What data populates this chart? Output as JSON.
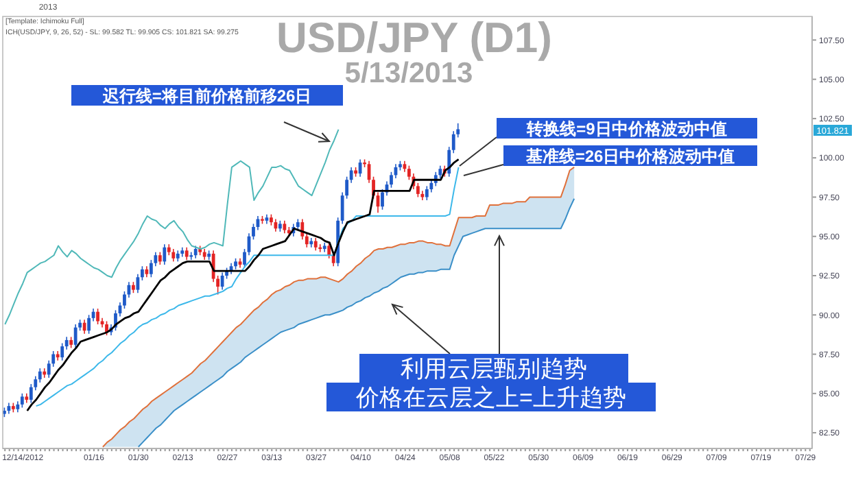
{
  "chart_data": {
    "type": "candlestick",
    "title": "USD/JPY (D1)",
    "subtitle": "5/13/2013",
    "categories": [
      null,
      null,
      null,
      null,
      "12/14/2012",
      null,
      null,
      null,
      null,
      null,
      null,
      null,
      null,
      null,
      null,
      null,
      null,
      null,
      null,
      null,
      "01/16",
      null,
      null,
      null,
      null,
      null,
      null,
      null,
      null,
      null,
      "01/30",
      null,
      null,
      null,
      null,
      null,
      null,
      null,
      null,
      null,
      "02/13",
      null,
      null,
      null,
      null,
      null,
      null,
      null,
      null,
      null,
      "02/27",
      null,
      null,
      null,
      null,
      null,
      null,
      null,
      null,
      null,
      "03/13",
      null,
      null,
      null,
      null,
      null,
      null,
      null,
      null,
      null,
      "03/27",
      null,
      null,
      null,
      null,
      null,
      null,
      null,
      null,
      null,
      "04/10",
      null,
      null,
      null,
      null,
      null,
      null,
      null,
      null,
      null,
      "04/24",
      null,
      null,
      null,
      null,
      null,
      null,
      null,
      null,
      null,
      "05/08",
      null,
      null,
      null,
      null,
      null,
      null,
      null,
      null,
      null,
      "05/22",
      null,
      null,
      null,
      null,
      null,
      null,
      null,
      null,
      null,
      "05/30",
      null,
      null,
      null,
      null,
      null,
      null,
      null,
      null,
      null,
      "06/09",
      null,
      null,
      null,
      null,
      null,
      null,
      null,
      null,
      null,
      "06/19",
      null,
      null,
      null,
      null,
      null,
      null,
      null,
      null,
      null,
      "06/29",
      null,
      null,
      null,
      null,
      null,
      null,
      null,
      null,
      null,
      "07/09",
      null,
      null,
      null,
      null,
      null,
      null,
      null,
      null,
      null,
      "07/19",
      null,
      null,
      null,
      null,
      null,
      null,
      null,
      null,
      null,
      "07/29",
      null
    ],
    "ylim": [
      81.5,
      109
    ],
    "yticks": [
      {
        "value": 82.5,
        "label": "82.50"
      },
      {
        "value": 85,
        "label": "85.00"
      },
      {
        "value": 87.5,
        "label": "87.50"
      },
      {
        "value": 90,
        "label": "90.00"
      },
      {
        "value": 92.5,
        "label": "92.50"
      },
      {
        "value": 95,
        "label": "95.00"
      },
      {
        "value": 97.5,
        "label": "97.50"
      },
      {
        "value": 100,
        "label": "100.00"
      },
      {
        "value": 102.5,
        "label": "102.50"
      },
      {
        "value": 105,
        "label": "105.00"
      },
      {
        "value": 107.5,
        "label": "107.50"
      }
    ],
    "grid": false,
    "series": [
      {
        "type": "line",
        "color": "#e0703a",
        "values": [
          null,
          null,
          null,
          null,
          null,
          null,
          null,
          null,
          null,
          null,
          null,
          null,
          null,
          null,
          null,
          null,
          null,
          null,
          null,
          null,
          null,
          null,
          81.6,
          81.9,
          82.1,
          82.4,
          82.7,
          82.9,
          83.2,
          83.4,
          83.7,
          84.0,
          84.2,
          84.5,
          84.7,
          84.9,
          85.1,
          85.3,
          85.5,
          85.7,
          85.9,
          86.1,
          86.3,
          86.6,
          86.9,
          87.1,
          87.4,
          87.7,
          88.0,
          88.3,
          88.6,
          88.9,
          89.2,
          89.4,
          89.7,
          90.0,
          90.3,
          90.5,
          90.8,
          91.0,
          91.3,
          91.5,
          91.6,
          91.8,
          91.9,
          92.1,
          92.2,
          92.2,
          92.3,
          92.3,
          92.3,
          92.4,
          92.4,
          92.3,
          92.2,
          92.1,
          92.3,
          92.6,
          92.8,
          93.1,
          93.3,
          93.6,
          93.8,
          94.1,
          94.2,
          94.2,
          94.3,
          94.3,
          94.4,
          94.5,
          94.5,
          94.6,
          94.6,
          94.7,
          94.7,
          94.6,
          94.6,
          94.5,
          94.5,
          94.4,
          94.4,
          95.3,
          96.2,
          96.2,
          96.2,
          96.2,
          96.3,
          96.3,
          96.3,
          97.0,
          97.0,
          97.0,
          97.1,
          97.1,
          97.1,
          97.2,
          97.2,
          97.2,
          97.5,
          97.5,
          97.5,
          97.5,
          97.5,
          97.5,
          97.5,
          97.5,
          98.3,
          99.2,
          99.4,
          null,
          null,
          null,
          null,
          null,
          null,
          null,
          null,
          null,
          null,
          null,
          null,
          null,
          null,
          null,
          null,
          null,
          null,
          null,
          null,
          null,
          null,
          null,
          null,
          null,
          null,
          null,
          null,
          null,
          null,
          null,
          null,
          null,
          null,
          null,
          null,
          null,
          null,
          null,
          null,
          null,
          null,
          null,
          null,
          null,
          null,
          null,
          null,
          null,
          null,
          null,
          null,
          null
        ]
      },
      {
        "type": "line",
        "color": "#3a8fc8",
        "values": [
          null,
          null,
          null,
          null,
          null,
          null,
          null,
          null,
          null,
          null,
          null,
          null,
          null,
          null,
          null,
          null,
          null,
          null,
          null,
          null,
          null,
          null,
          null,
          null,
          null,
          null,
          null,
          null,
          null,
          null,
          81.6,
          81.9,
          82.2,
          82.5,
          82.8,
          83.0,
          83.3,
          83.6,
          83.9,
          84.1,
          84.3,
          84.5,
          84.7,
          84.9,
          85.1,
          85.3,
          85.5,
          85.7,
          85.9,
          86.1,
          86.4,
          86.6,
          86.8,
          87.0,
          87.3,
          87.5,
          87.7,
          87.9,
          88.1,
          88.3,
          88.5,
          88.7,
          88.9,
          89.0,
          89.1,
          89.2,
          89.4,
          89.5,
          89.6,
          89.7,
          89.8,
          89.9,
          90.0,
          90.0,
          90.1,
          90.2,
          90.3,
          90.5,
          90.6,
          90.8,
          90.9,
          91.1,
          91.2,
          91.4,
          91.5,
          91.7,
          91.8,
          92.0,
          92.2,
          92.4,
          92.5,
          92.6,
          92.6,
          92.7,
          92.7,
          92.8,
          92.8,
          92.8,
          92.9,
          92.9,
          92.9,
          93.8,
          94.4,
          95.0,
          95.1,
          95.2,
          95.3,
          95.4,
          95.5,
          95.5,
          95.5,
          95.5,
          95.5,
          95.5,
          95.5,
          95.5,
          95.5,
          95.5,
          95.5,
          95.5,
          95.5,
          95.5,
          95.5,
          95.5,
          95.5,
          95.5,
          96.1,
          96.8,
          97.4,
          null,
          null,
          null,
          null,
          null,
          null,
          null,
          null,
          null,
          null,
          null,
          null,
          null,
          null,
          null,
          null,
          null,
          null,
          null,
          null,
          null,
          null,
          null,
          null,
          null,
          null,
          null,
          null,
          null,
          null,
          null,
          null,
          null,
          null,
          null,
          null,
          null,
          null,
          null,
          null,
          null,
          null,
          null,
          null,
          null,
          null,
          null,
          null,
          null,
          null,
          null,
          null,
          null
        ],
        "lower": [
          null,
          null,
          null,
          null,
          null,
          null,
          null,
          null,
          null,
          null,
          null,
          null,
          null,
          null,
          null,
          null,
          null,
          null,
          null,
          null,
          null,
          null,
          81.6,
          81.6,
          81.6,
          81.6,
          81.6,
          81.6,
          81.6,
          81.6,
          81.6,
          81.9,
          82.2,
          82.5,
          82.8,
          83.0,
          83.3,
          83.6,
          83.9,
          84.1,
          84.3,
          84.5,
          84.7,
          84.9,
          85.1,
          85.3,
          85.5,
          85.7,
          85.9,
          86.1,
          86.4,
          86.6,
          86.8,
          87.0,
          87.3,
          87.5,
          87.7,
          87.9,
          88.1,
          88.3,
          88.5,
          88.7,
          88.9,
          89.0,
          89.1,
          89.2,
          89.4,
          89.5,
          89.6,
          89.7,
          89.8,
          89.9,
          90.0,
          90.0,
          90.1,
          90.2,
          90.3,
          90.5,
          90.6,
          90.8,
          90.9,
          91.1,
          91.2,
          91.4,
          91.5,
          91.7,
          91.8,
          92.0,
          92.2,
          92.4,
          92.5,
          92.6,
          92.6,
          92.7,
          92.7,
          92.8,
          92.8,
          92.8,
          92.9,
          92.9,
          92.9,
          93.8,
          94.4,
          95.0,
          95.1,
          95.2,
          95.3,
          95.4,
          95.5,
          95.5,
          95.5,
          95.5,
          95.5,
          95.5,
          95.5,
          95.5,
          95.5,
          95.5,
          95.5,
          95.5,
          95.5,
          95.5,
          95.5,
          95.5,
          95.5,
          95.5,
          96.1,
          96.8,
          97.4,
          null,
          null,
          null,
          null,
          null,
          null,
          null,
          null,
          null,
          null,
          null,
          null,
          null,
          null,
          null,
          null,
          null,
          null,
          null,
          null,
          null,
          null,
          null,
          null,
          null,
          null,
          null,
          null,
          null,
          null,
          null,
          null,
          null,
          null,
          null,
          null,
          null,
          null,
          null,
          null,
          null,
          null,
          null,
          null,
          null,
          null,
          null,
          null,
          null,
          null,
          null,
          null,
          null
        ],
        "upper": [
          null,
          null,
          null,
          null,
          null,
          null,
          null,
          null,
          null,
          null,
          null,
          null,
          null,
          null,
          null,
          null,
          null,
          null,
          null,
          null,
          null,
          null,
          81.6,
          81.9,
          82.1,
          82.4,
          82.7,
          82.9,
          83.2,
          83.4,
          83.7,
          84.0,
          84.2,
          84.5,
          84.7,
          84.9,
          85.1,
          85.3,
          85.5,
          85.7,
          85.9,
          86.1,
          86.3,
          86.6,
          86.9,
          87.1,
          87.4,
          87.7,
          88.0,
          88.3,
          88.6,
          88.9,
          89.2,
          89.4,
          89.7,
          90.0,
          90.3,
          90.5,
          90.8,
          91.0,
          91.3,
          91.5,
          91.6,
          91.8,
          91.9,
          92.1,
          92.2,
          92.2,
          92.3,
          92.3,
          92.3,
          92.4,
          92.4,
          92.3,
          92.2,
          92.1,
          92.3,
          92.6,
          92.8,
          93.1,
          93.3,
          93.6,
          93.8,
          94.1,
          94.2,
          94.2,
          94.3,
          94.3,
          94.4,
          94.5,
          94.5,
          94.6,
          94.6,
          94.7,
          94.7,
          94.6,
          94.6,
          94.5,
          94.5,
          94.4,
          94.4,
          95.3,
          96.2,
          96.2,
          96.2,
          96.2,
          96.3,
          96.3,
          96.3,
          97.0,
          97.0,
          97.0,
          97.1,
          97.1,
          97.1,
          97.2,
          97.2,
          97.2,
          97.5,
          97.5,
          97.5,
          97.5,
          97.5,
          97.5,
          97.5,
          97.5,
          98.3,
          99.2,
          99.4,
          null,
          null,
          null,
          null,
          null,
          null,
          null,
          null,
          null,
          null,
          null,
          null,
          null,
          null,
          null,
          null,
          null,
          null,
          null,
          null,
          null,
          null,
          null,
          null,
          null,
          null,
          null,
          null,
          null,
          null,
          null,
          null,
          null,
          null,
          null,
          null,
          null,
          null,
          null,
          null,
          null,
          null,
          null,
          null,
          null,
          null,
          null,
          null,
          null,
          null,
          null,
          null,
          null
        ]
      },
      {
        "type": "line",
        "color": "#3cb8ea",
        "values": [
          null,
          null,
          null,
          null,
          null,
          null,
          null,
          84.2,
          84.3,
          84.5,
          84.7,
          84.9,
          85.1,
          85.3,
          85.5,
          85.6,
          85.8,
          86.0,
          86.2,
          86.4,
          86.6,
          86.9,
          87.1,
          87.4,
          87.6,
          87.9,
          88.2,
          88.4,
          88.7,
          88.9,
          89.2,
          89.4,
          89.5,
          89.7,
          89.8,
          90.0,
          90.1,
          90.3,
          90.4,
          90.6,
          90.7,
          90.8,
          90.9,
          91.0,
          91.1,
          91.2,
          91.2,
          91.3,
          91.4,
          91.5,
          91.7,
          91.8,
          92.3,
          92.7,
          93.1,
          93.4,
          93.8,
          93.8,
          93.8,
          93.8,
          93.8,
          93.8,
          93.8,
          93.8,
          93.8,
          93.8,
          93.8,
          93.8,
          93.8,
          93.8,
          93.8,
          93.8,
          93.8,
          93.8,
          93.8,
          94.7,
          95.5,
          95.8,
          96.0,
          96.3,
          96.3,
          96.3,
          96.3,
          96.3,
          96.3,
          96.3,
          96.3,
          96.3,
          96.3,
          96.3,
          96.3,
          96.3,
          96.3,
          96.3,
          96.3,
          96.3,
          96.3,
          96.3,
          96.3,
          96.3,
          96.4,
          98.0,
          99.4,
          null,
          null,
          null,
          null,
          null,
          null,
          null,
          null,
          null,
          null,
          null,
          null,
          null,
          null,
          null,
          null,
          null,
          null,
          null,
          null,
          null,
          null,
          null,
          null,
          null,
          null,
          null,
          null,
          null,
          null,
          null,
          null,
          null,
          null,
          null,
          null,
          null,
          null,
          null,
          null,
          null,
          null,
          null,
          null,
          null,
          null,
          null,
          null,
          null,
          null,
          null,
          null,
          null,
          null,
          null,
          null,
          null,
          null,
          null,
          null,
          null,
          null,
          null,
          null,
          null,
          null,
          null,
          null,
          null,
          null,
          null,
          null,
          null,
          null,
          null,
          null,
          null,
          null,
          null
        ]
      },
      {
        "type": "line",
        "color": "#000000",
        "values": [
          null,
          null,
          null,
          null,
          null,
          83.9,
          84.3,
          84.6,
          85.0,
          85.4,
          85.7,
          86.1,
          86.5,
          86.8,
          87.2,
          87.6,
          87.9,
          88.3,
          88.4,
          88.5,
          88.6,
          88.7,
          88.8,
          88.9,
          89.1,
          89.4,
          89.6,
          89.8,
          89.9,
          90.1,
          90.2,
          90.6,
          91.0,
          91.4,
          91.8,
          92.2,
          92.4,
          92.7,
          92.9,
          93.1,
          93.3,
          93.4,
          93.4,
          93.4,
          93.4,
          93.4,
          93.4,
          92.8,
          92.8,
          92.8,
          92.8,
          92.8,
          92.8,
          92.8,
          92.8,
          93.1,
          93.5,
          93.8,
          94.2,
          94.3,
          94.4,
          94.5,
          94.6,
          94.7,
          95.1,
          95.5,
          95.4,
          95.3,
          95.2,
          95.1,
          95.0,
          94.9,
          94.7,
          94.6,
          93.8,
          94.6,
          95.3,
          95.9,
          96.0,
          96.1,
          96.2,
          96.3,
          96.4,
          97.9,
          97.9,
          97.9,
          97.9,
          97.9,
          97.9,
          97.9,
          97.9,
          97.9,
          98.6,
          98.6,
          98.6,
          98.6,
          98.6,
          98.6,
          98.6,
          99.2,
          99.4,
          99.7,
          99.9,
          null,
          null,
          null,
          null,
          null,
          null,
          null,
          null,
          null,
          null,
          null,
          null,
          null,
          null,
          null,
          null,
          null,
          null,
          null,
          null,
          null,
          null,
          null,
          null,
          null,
          null,
          null,
          null,
          null,
          null,
          null,
          null,
          null,
          null,
          null,
          null,
          null,
          null,
          null,
          null,
          null,
          null,
          null,
          null,
          null,
          null,
          null,
          null,
          null,
          null,
          null,
          null,
          null,
          null,
          null,
          null,
          null,
          null,
          null,
          null,
          null,
          null,
          null,
          null,
          null,
          null,
          null,
          null,
          null,
          null,
          null,
          null,
          null,
          null,
          null,
          null,
          null,
          null,
          null
        ]
      },
      {
        "type": "line",
        "color": "#4fb8b8",
        "values": [
          89.4,
          90.0,
          90.7,
          91.4,
          92.0,
          92.7,
          92.9,
          93.1,
          93.3,
          93.4,
          93.6,
          93.8,
          94.4,
          94.0,
          93.7,
          94.1,
          93.9,
          93.6,
          93.4,
          93.2,
          93.0,
          92.9,
          92.7,
          92.5,
          92.4,
          93.0,
          93.5,
          93.9,
          94.3,
          94.7,
          95.2,
          95.8,
          96.3,
          96.1,
          96.0,
          95.7,
          95.5,
          95.8,
          96.0,
          95.6,
          95.3,
          94.8,
          94.4,
          94.3,
          94.2,
          94.3,
          94.5,
          94.6,
          94.5,
          94.4,
          97.0,
          99.4,
          99.6,
          99.8,
          99.6,
          99.4,
          97.3,
          97.8,
          98.2,
          98.8,
          99.4,
          99.4,
          99.5,
          99.3,
          99.2,
          98.7,
          98.2,
          98.0,
          97.8,
          97.6,
          98.3,
          99.0,
          99.7,
          100.5,
          101.1,
          101.8,
          null,
          null,
          null,
          null,
          null,
          null,
          null,
          null,
          null,
          null,
          null,
          null,
          null,
          null,
          null,
          null,
          null,
          null,
          null,
          null,
          null,
          null,
          null,
          null,
          null,
          null,
          null,
          null,
          null,
          null,
          null,
          null,
          null,
          null,
          null,
          null,
          null,
          null,
          null,
          null,
          null,
          null,
          null,
          null,
          null,
          null,
          null,
          null,
          null,
          null,
          null,
          null,
          null,
          null,
          null,
          null,
          null,
          null,
          null,
          null,
          null,
          null,
          null,
          null,
          null,
          null,
          null,
          null,
          null,
          null,
          null,
          null,
          null,
          null,
          null,
          null,
          null,
          null,
          null,
          null,
          null,
          null,
          null,
          null,
          null,
          null,
          null,
          null,
          null,
          null,
          null,
          null,
          null,
          null,
          null,
          null,
          null,
          null,
          null,
          null,
          null,
          null,
          null,
          null,
          null,
          null
        ]
      },
      {
        "colors": [
          "#1f5ac8",
          "#1f5ac8",
          "#e32424",
          "#1f5ac8",
          "#1f5ac8",
          "#e32424",
          "#1f5ac8",
          "#1f5ac8",
          "#1f5ac8",
          "#e32424",
          "#1f5ac8",
          "#1f5ac8",
          "#e32424",
          "#1f5ac8",
          "#1f5ac8",
          "#e32424",
          "#1f5ac8",
          "#1f5ac8",
          "#e32424",
          "#1f5ac8",
          "#1f5ac8",
          "#e32424",
          "#e32424",
          "#e32424",
          "#1f5ac8",
          "#1f5ac8",
          "#1f5ac8",
          "#1f5ac8",
          "#1f5ac8",
          "#e32424",
          "#1f5ac8",
          "#1f5ac8",
          "#e32424",
          "#1f5ac8",
          "#1f5ac8",
          "#e32424",
          "#1f5ac8",
          "#e32424",
          "#e32424",
          "#1f5ac8",
          "#1f5ac8",
          "#e32424",
          "#1f5ac8",
          "#1f5ac8",
          "#e32424",
          "#e32424",
          "#1f5ac8",
          "#e32424",
          "#e32424",
          "#1f5ac8",
          "#1f5ac8",
          "#1f5ac8",
          "#1f5ac8",
          "#e32424",
          "#1f5ac8",
          "#1f5ac8",
          "#1f5ac8",
          "#1f5ac8",
          "#e32424",
          "#1f5ac8",
          "#e32424",
          "#e32424",
          "#1f5ac8",
          "#e32424",
          "#e32424",
          "#1f5ac8",
          "#1f5ac8",
          "#e32424",
          "#e32424",
          "#1f5ac8",
          "#e32424",
          "#e32424",
          "#1f5ac8",
          "#e32424",
          "#e32424",
          "#1f5ac8",
          "#1f5ac8",
          "#1f5ac8",
          "#1f5ac8",
          "#e32424",
          "#1f5ac8",
          "#e32424",
          "#e32424",
          "#e32424",
          "#e32424",
          "#1f5ac8",
          "#1f5ac8",
          "#1f5ac8",
          "#1f5ac8",
          "#1f5ac8",
          "#e32424",
          "#e32424",
          "#e32424",
          "#e32424",
          "#e32424",
          "#1f5ac8",
          "#1f5ac8",
          "#1f5ac8",
          "#1f5ac8",
          "#e32424",
          "#1f5ac8",
          "#1f5ac8",
          "#1f5ac8",
          null,
          null,
          null,
          null,
          null,
          null,
          null,
          null,
          null,
          null,
          null,
          null,
          null,
          null,
          null,
          null,
          null,
          null,
          null,
          null,
          null,
          null,
          null,
          null,
          null,
          null,
          null,
          null,
          null,
          null,
          null,
          null,
          null,
          null,
          null,
          null,
          null,
          null,
          null,
          null,
          null,
          null,
          null,
          null,
          null,
          null,
          null,
          null,
          null,
          null,
          null,
          null,
          null,
          null,
          null,
          null,
          null,
          null,
          null,
          null,
          null,
          null,
          null,
          null,
          null,
          null,
          null,
          null,
          null,
          null,
          null,
          null,
          null,
          null,
          null,
          null,
          null,
          null,
          null
        ],
        "ohlc": [
          [
            83.7,
            84.1,
            83.5,
            83.9
          ],
          [
            83.9,
            84.4,
            83.7,
            84.2
          ],
          [
            84.2,
            84.4,
            83.8,
            84.0
          ],
          [
            84.0,
            84.5,
            83.8,
            84.3
          ],
          [
            84.3,
            85.0,
            84.1,
            84.8
          ],
          [
            84.8,
            85.0,
            84.4,
            84.6
          ],
          [
            84.6,
            85.6,
            84.4,
            85.4
          ],
          [
            85.4,
            86.1,
            85.2,
            85.9
          ],
          [
            85.9,
            86.6,
            85.7,
            86.4
          ],
          [
            86.4,
            86.6,
            86.0,
            86.2
          ],
          [
            86.2,
            87.1,
            86.0,
            86.9
          ],
          [
            86.9,
            87.7,
            86.7,
            87.5
          ],
          [
            87.5,
            87.7,
            87.1,
            87.3
          ],
          [
            87.3,
            88.2,
            87.1,
            88.0
          ],
          [
            88.0,
            88.6,
            87.8,
            88.4
          ],
          [
            88.4,
            88.6,
            87.9,
            88.1
          ],
          [
            88.1,
            89.4,
            87.9,
            89.2
          ],
          [
            89.2,
            89.7,
            89.0,
            89.5
          ],
          [
            89.5,
            89.7,
            88.8,
            89.0
          ],
          [
            89.0,
            90.0,
            88.8,
            89.8
          ],
          [
            89.8,
            90.4,
            89.6,
            90.2
          ],
          [
            90.2,
            90.4,
            89.4,
            89.6
          ],
          [
            89.6,
            89.8,
            89.2,
            89.4
          ],
          [
            89.4,
            89.6,
            88.7,
            88.9
          ],
          [
            88.9,
            89.4,
            88.7,
            89.2
          ],
          [
            89.2,
            90.3,
            89.0,
            90.1
          ],
          [
            90.1,
            90.8,
            89.9,
            90.6
          ],
          [
            90.6,
            91.5,
            90.4,
            91.3
          ],
          [
            91.3,
            92.1,
            91.1,
            91.9
          ],
          [
            91.9,
            92.1,
            91.4,
            91.6
          ],
          [
            91.6,
            92.6,
            91.4,
            92.4
          ],
          [
            92.4,
            93.1,
            92.2,
            92.9
          ],
          [
            92.9,
            93.1,
            92.4,
            92.6
          ],
          [
            92.6,
            93.5,
            92.4,
            93.3
          ],
          [
            93.3,
            94.0,
            93.1,
            93.8
          ],
          [
            93.8,
            94.0,
            93.2,
            93.4
          ],
          [
            93.4,
            94.5,
            93.2,
            94.3
          ],
          [
            94.3,
            94.5,
            93.8,
            94.0
          ],
          [
            94.0,
            94.2,
            93.4,
            93.6
          ],
          [
            93.6,
            94.1,
            93.4,
            93.9
          ],
          [
            93.9,
            94.3,
            93.7,
            94.1
          ],
          [
            94.1,
            94.3,
            93.5,
            93.7
          ],
          [
            93.7,
            94.0,
            93.5,
            93.8
          ],
          [
            93.8,
            94.4,
            93.6,
            94.2
          ],
          [
            94.2,
            94.4,
            93.8,
            94.0
          ],
          [
            94.0,
            94.2,
            93.5,
            93.7
          ],
          [
            93.7,
            94.1,
            93.5,
            93.9
          ],
          [
            93.9,
            94.1,
            92.1,
            92.3
          ],
          [
            92.3,
            92.5,
            91.3,
            91.8
          ],
          [
            91.8,
            92.7,
            91.6,
            92.5
          ],
          [
            92.5,
            93.0,
            92.3,
            92.8
          ],
          [
            92.8,
            93.3,
            92.6,
            93.1
          ],
          [
            93.1,
            93.6,
            92.9,
            93.4
          ],
          [
            93.4,
            93.6,
            93.0,
            93.2
          ],
          [
            93.2,
            94.2,
            93.0,
            94.0
          ],
          [
            94.0,
            95.2,
            93.8,
            95.0
          ],
          [
            95.0,
            95.8,
            94.8,
            95.6
          ],
          [
            95.6,
            96.3,
            95.4,
            96.1
          ],
          [
            96.1,
            96.3,
            95.8,
            96.0
          ],
          [
            96.0,
            96.4,
            95.8,
            96.2
          ],
          [
            96.2,
            96.4,
            95.7,
            95.9
          ],
          [
            95.9,
            96.1,
            95.3,
            95.5
          ],
          [
            95.5,
            96.0,
            95.3,
            95.8
          ],
          [
            95.8,
            96.0,
            95.2,
            95.4
          ],
          [
            95.4,
            95.6,
            95.0,
            95.2
          ],
          [
            95.2,
            95.8,
            95.0,
            95.6
          ],
          [
            95.6,
            96.1,
            95.4,
            95.9
          ],
          [
            95.9,
            96.1,
            94.8,
            95.0
          ],
          [
            95.0,
            95.2,
            94.3,
            94.5
          ],
          [
            94.5,
            94.9,
            94.3,
            94.7
          ],
          [
            94.7,
            94.9,
            94.1,
            94.3
          ],
          [
            94.3,
            94.5,
            94.0,
            94.2
          ],
          [
            94.2,
            94.6,
            94.0,
            94.4
          ],
          [
            94.4,
            94.6,
            93.6,
            93.8
          ],
          [
            93.8,
            94.0,
            93.1,
            93.3
          ],
          [
            93.3,
            96.2,
            93.1,
            96.0
          ],
          [
            96.0,
            97.8,
            95.8,
            97.6
          ],
          [
            97.6,
            98.8,
            97.4,
            98.6
          ],
          [
            98.6,
            99.4,
            98.4,
            99.2
          ],
          [
            99.2,
            99.4,
            98.8,
            99.0
          ],
          [
            99.0,
            99.9,
            98.8,
            99.7
          ],
          [
            99.7,
            99.9,
            99.4,
            99.6
          ],
          [
            99.6,
            99.8,
            98.4,
            98.6
          ],
          [
            98.6,
            98.8,
            97.4,
            97.6
          ],
          [
            97.6,
            97.8,
            96.5,
            96.9
          ],
          [
            96.9,
            98.0,
            96.7,
            97.8
          ],
          [
            97.8,
            98.5,
            97.6,
            98.3
          ],
          [
            98.3,
            99.1,
            98.1,
            98.9
          ],
          [
            98.9,
            99.6,
            98.7,
            99.4
          ],
          [
            99.4,
            99.8,
            99.2,
            99.6
          ],
          [
            99.6,
            99.8,
            99.1,
            99.3
          ],
          [
            99.3,
            99.5,
            98.6,
            98.8
          ],
          [
            98.8,
            99.0,
            98.0,
            98.2
          ],
          [
            98.2,
            98.4,
            97.5,
            97.7
          ],
          [
            97.7,
            97.9,
            97.3,
            97.5
          ],
          [
            97.5,
            98.2,
            97.3,
            98.0
          ],
          [
            98.0,
            98.6,
            97.8,
            98.4
          ],
          [
            98.4,
            99.1,
            98.2,
            98.9
          ],
          [
            98.9,
            99.5,
            98.7,
            99.3
          ],
          [
            99.3,
            99.5,
            98.8,
            99.0
          ],
          [
            99.0,
            100.7,
            98.8,
            100.5
          ],
          [
            100.5,
            101.7,
            100.3,
            101.5
          ],
          [
            101.5,
            102.2,
            101.3,
            101.82
          ],
          null,
          null,
          null,
          null,
          null,
          null,
          null,
          null,
          null,
          null,
          null,
          null,
          null,
          null,
          null,
          null,
          null,
          null,
          null,
          null,
          null,
          null,
          null,
          null,
          null,
          null,
          null,
          null,
          null,
          null,
          null,
          null,
          null,
          null,
          null,
          null,
          null,
          null,
          null,
          null,
          null,
          null,
          null,
          null,
          null,
          null,
          null,
          null,
          null,
          null,
          null,
          null,
          null,
          null,
          null,
          null,
          null,
          null,
          null,
          null,
          null,
          null,
          null,
          null,
          null,
          null,
          null,
          null,
          null,
          null,
          null,
          null,
          null,
          null,
          null,
          null,
          null,
          null,
          null
        ]
      }
    ],
    "annotations": [
      "[Template: Ichimoku Full]",
      "ICH(USD/JPY, 9, 26, 52) - SL: 99.582  TL: 99.905  CS: 101.821  SA: 99.275",
      "2013",
      "迟行线=将目前价格前移26日",
      "转换线=9日中价格波动中值",
      "基准线=26日中价格波动中值",
      "利用云层甄别趋势",
      "价格在云层之上=上升趋势",
      "101.821"
    ]
  }
}
